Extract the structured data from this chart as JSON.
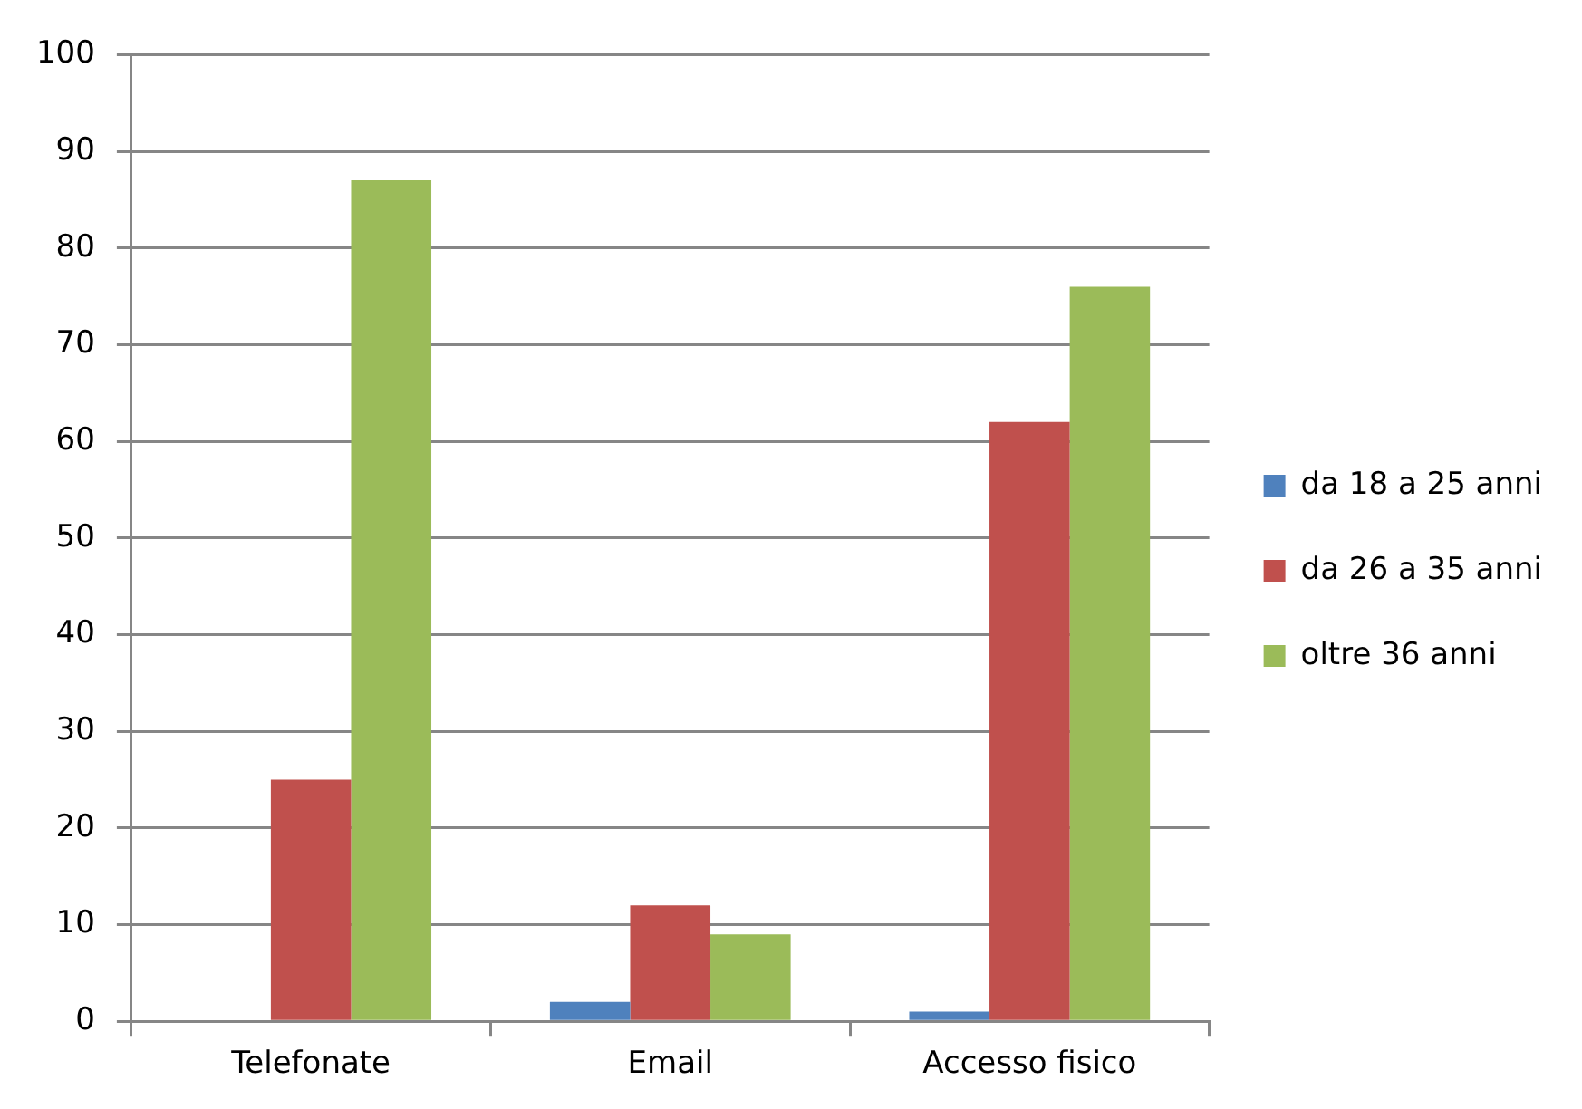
{
  "chart_data": {
    "type": "bar",
    "categories": [
      "Telefonate",
      "Email",
      "Accesso fisico"
    ],
    "series": [
      {
        "name": "da 18 a 25 anni",
        "color": "#4f81bd",
        "values": [
          0,
          2,
          1
        ]
      },
      {
        "name": "da 26 a 35 anni",
        "color": "#c0504d",
        "values": [
          25,
          12,
          62
        ]
      },
      {
        "name": "oltre 36 anni",
        "color": "#9bbb59",
        "values": [
          87,
          9,
          76
        ]
      }
    ],
    "ylim": [
      0,
      100
    ],
    "yticks": [
      0,
      10,
      20,
      30,
      40,
      50,
      60,
      70,
      80,
      90,
      100
    ],
    "grid": "y",
    "legend": "right"
  }
}
